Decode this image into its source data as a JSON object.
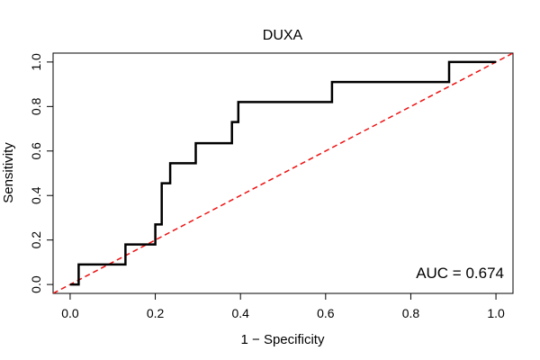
{
  "chart_data": {
    "type": "line",
    "title": "DUXA",
    "xlabel": "1 − Specificity",
    "ylabel": "Sensitivity",
    "xlim": [
      -0.04,
      1.04
    ],
    "ylim": [
      -0.04,
      1.04
    ],
    "xticks": [
      0.0,
      0.2,
      0.4,
      0.6,
      0.8,
      1.0
    ],
    "yticks": [
      0.0,
      0.2,
      0.4,
      0.6,
      0.8,
      1.0
    ],
    "xtick_labels": [
      "0.0",
      "0.2",
      "0.4",
      "0.6",
      "0.8",
      "1.0"
    ],
    "ytick_labels": [
      "0.0",
      "0.2",
      "0.4",
      "0.6",
      "0.8",
      "1.0"
    ],
    "annotation": "AUC = 0.674",
    "grid": false,
    "series": [
      {
        "color": "#000000",
        "style": "solid",
        "x": [
          0.0,
          0.02,
          0.02,
          0.13,
          0.13,
          0.2,
          0.2,
          0.215,
          0.215,
          0.235,
          0.235,
          0.295,
          0.295,
          0.38,
          0.38,
          0.395,
          0.395,
          0.615,
          0.615,
          0.89,
          0.89,
          1.0
        ],
        "y": [
          0.0,
          0.0,
          0.09,
          0.09,
          0.18,
          0.18,
          0.27,
          0.27,
          0.455,
          0.455,
          0.545,
          0.545,
          0.635,
          0.635,
          0.73,
          0.73,
          0.82,
          0.82,
          0.91,
          0.91,
          1.0,
          1.0
        ]
      },
      {
        "color": "#ee1111",
        "style": "dashed",
        "x": [
          -0.04,
          1.04
        ],
        "y": [
          -0.04,
          1.04
        ]
      }
    ]
  }
}
